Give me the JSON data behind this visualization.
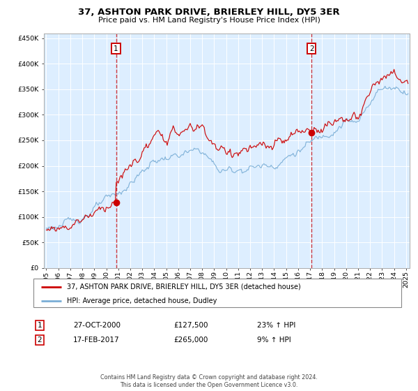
{
  "title": "37, ASHTON PARK DRIVE, BRIERLEY HILL, DY5 3ER",
  "subtitle": "Price paid vs. HM Land Registry's House Price Index (HPI)",
  "legend_line1": "37, ASHTON PARK DRIVE, BRIERLEY HILL, DY5 3ER (detached house)",
  "legend_line2": "HPI: Average price, detached house, Dudley",
  "annotation1_date": "27-OCT-2000",
  "annotation1_price": "£127,500",
  "annotation1_hpi": "23% ↑ HPI",
  "annotation2_date": "17-FEB-2017",
  "annotation2_price": "£265,000",
  "annotation2_hpi": "9% ↑ HPI",
  "footer": "Contains HM Land Registry data © Crown copyright and database right 2024.\nThis data is licensed under the Open Government Licence v3.0.",
  "red_color": "#cc0000",
  "blue_color": "#7aaed6",
  "bg_color": "#ddeeff",
  "grid_color": "#ffffff",
  "box_color": "#cc0000",
  "ylim": [
    0,
    460000
  ],
  "yticks": [
    0,
    50000,
    100000,
    150000,
    200000,
    250000,
    300000,
    350000,
    400000,
    450000
  ],
  "sale1_year": 2000.82,
  "sale1_price": 127500,
  "sale2_year": 2017.12,
  "sale2_price": 265000,
  "start_year": 1995.0,
  "end_year": 2025.3
}
